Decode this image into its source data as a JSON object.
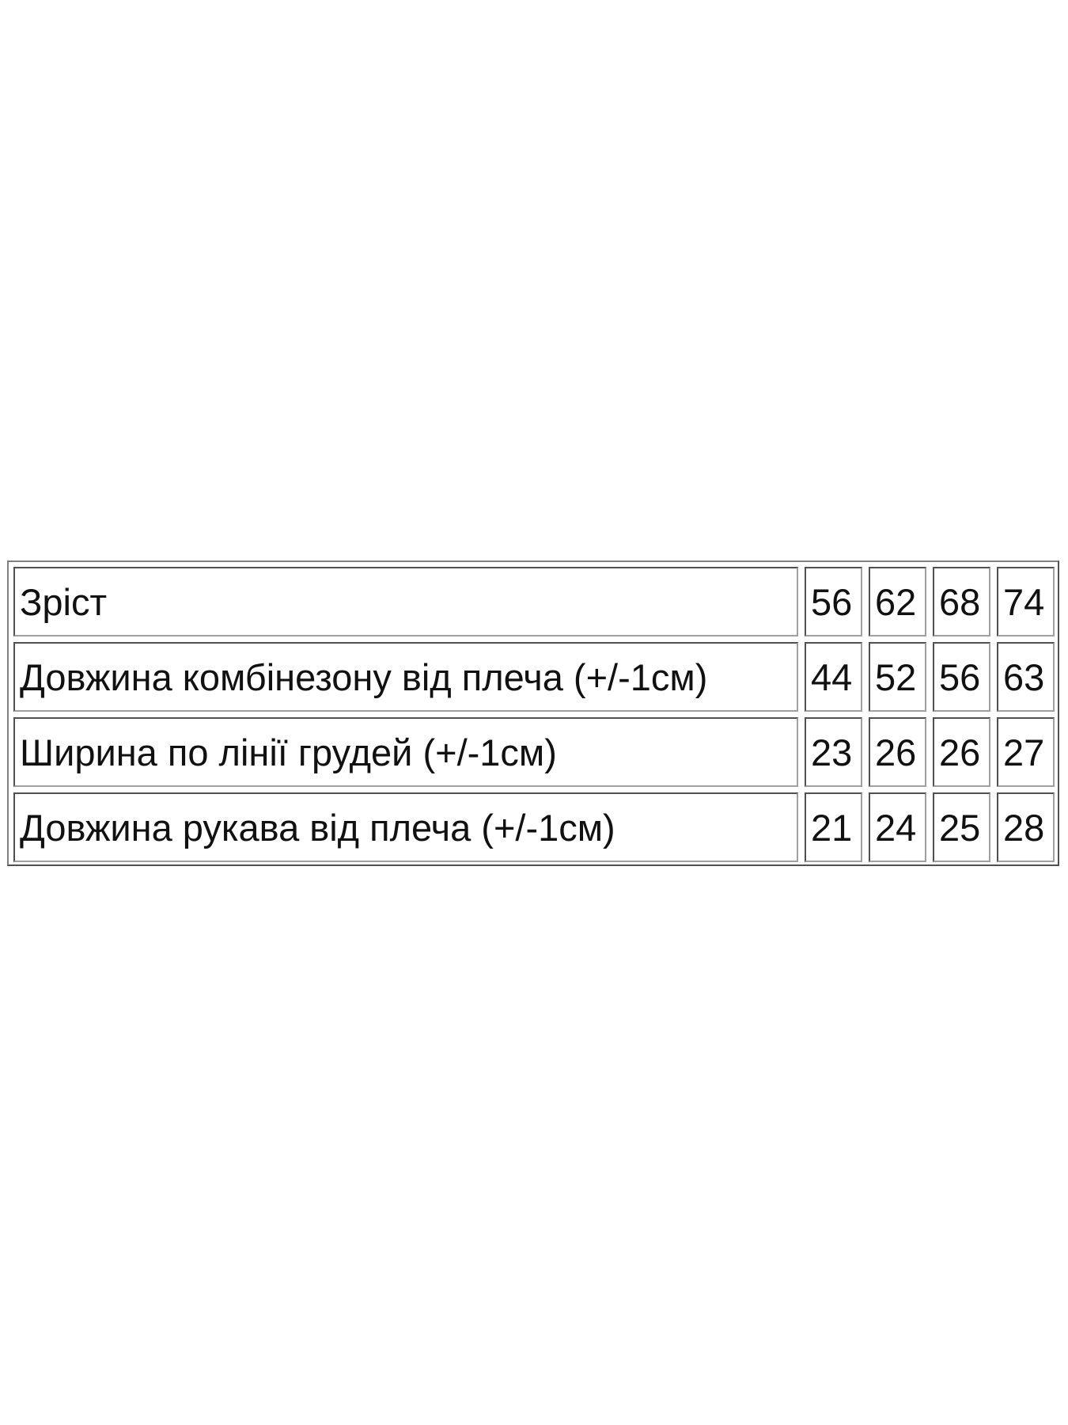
{
  "table": {
    "rows": [
      {
        "label": "Зріст",
        "values": [
          "56",
          "62",
          "68",
          "74"
        ]
      },
      {
        "label": "Довжина комбінезону від плеча (+/-1см)",
        "values": [
          "44",
          "52",
          "56",
          "63"
        ]
      },
      {
        "label": "Ширина по лінії грудей (+/-1см)",
        "values": [
          "23",
          "26",
          "26",
          "27"
        ]
      },
      {
        "label": "Довжина рукава від плеча (+/-1см)",
        "values": [
          "21",
          "24",
          "25",
          "28"
        ]
      }
    ]
  }
}
